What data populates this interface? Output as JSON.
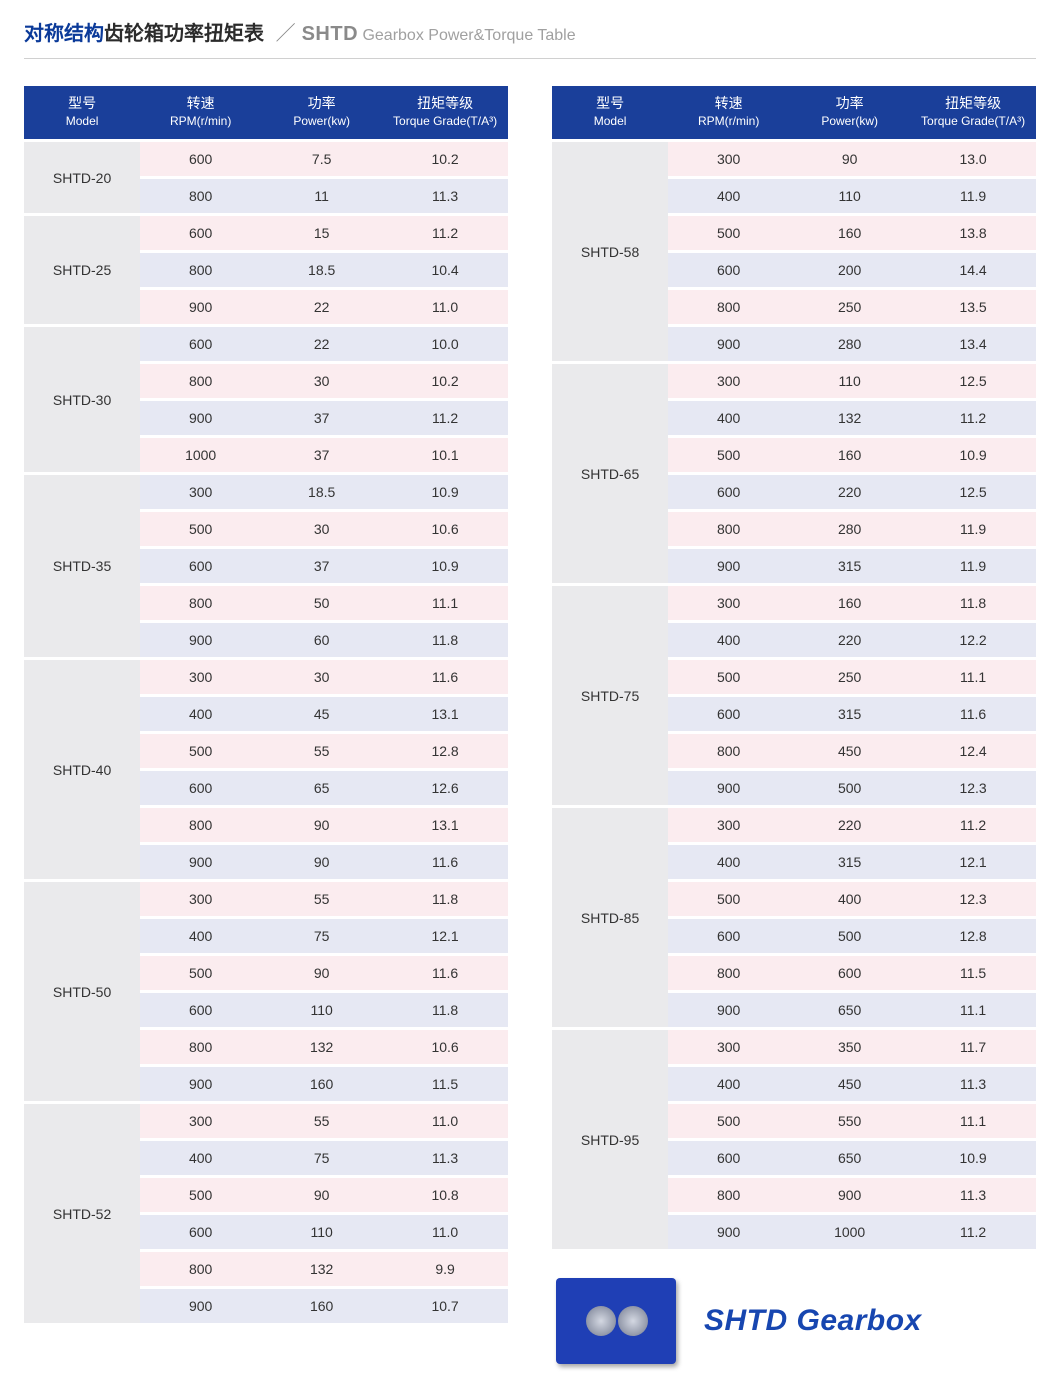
{
  "title": {
    "cn_blue": "对称结构",
    "cn_black": "齿轮箱功率扭矩表",
    "slash": "／",
    "en_main": "SHTD",
    "en_sub": " Gearbox Power&Torque Table"
  },
  "headers": {
    "model": {
      "top": "型号",
      "bot": "Model"
    },
    "rpm": {
      "top": "转速",
      "bot": "RPM(r/min)"
    },
    "power": {
      "top": "功率",
      "bot": "Power(kw)"
    },
    "torque": {
      "top": "扭矩等级",
      "bot": "Torque Grade(T/A³)"
    }
  },
  "colors": {
    "header_bg": "#1a3f9a",
    "header_fg": "#ffffff",
    "model_bg": "#eaeaec",
    "row_pink": "#fbecef",
    "row_blue": "#e6e8f3",
    "title_blue": "#0b3a99"
  },
  "left_groups": [
    {
      "model": "SHTD-20",
      "rows": [
        {
          "rpm": "600",
          "pw": "7.5",
          "tq": "10.2"
        },
        {
          "rpm": "800",
          "pw": "11",
          "tq": "11.3"
        }
      ]
    },
    {
      "model": "SHTD-25",
      "rows": [
        {
          "rpm": "600",
          "pw": "15",
          "tq": "11.2"
        },
        {
          "rpm": "800",
          "pw": "18.5",
          "tq": "10.4"
        },
        {
          "rpm": "900",
          "pw": "22",
          "tq": "11.0"
        }
      ]
    },
    {
      "model": "SHTD-30",
      "rows": [
        {
          "rpm": "600",
          "pw": "22",
          "tq": "10.0"
        },
        {
          "rpm": "800",
          "pw": "30",
          "tq": "10.2"
        },
        {
          "rpm": "900",
          "pw": "37",
          "tq": "11.2"
        },
        {
          "rpm": "1000",
          "pw": "37",
          "tq": "10.1"
        }
      ]
    },
    {
      "model": "SHTD-35",
      "rows": [
        {
          "rpm": "300",
          "pw": "18.5",
          "tq": "10.9"
        },
        {
          "rpm": "500",
          "pw": "30",
          "tq": "10.6"
        },
        {
          "rpm": "600",
          "pw": "37",
          "tq": "10.9"
        },
        {
          "rpm": "800",
          "pw": "50",
          "tq": "11.1"
        },
        {
          "rpm": "900",
          "pw": "60",
          "tq": "11.8"
        }
      ]
    },
    {
      "model": "SHTD-40",
      "rows": [
        {
          "rpm": "300",
          "pw": "30",
          "tq": "11.6"
        },
        {
          "rpm": "400",
          "pw": "45",
          "tq": "13.1"
        },
        {
          "rpm": "500",
          "pw": "55",
          "tq": "12.8"
        },
        {
          "rpm": "600",
          "pw": "65",
          "tq": "12.6"
        },
        {
          "rpm": "800",
          "pw": "90",
          "tq": "13.1"
        },
        {
          "rpm": "900",
          "pw": "90",
          "tq": "11.6"
        }
      ]
    },
    {
      "model": "SHTD-50",
      "rows": [
        {
          "rpm": "300",
          "pw": "55",
          "tq": "11.8"
        },
        {
          "rpm": "400",
          "pw": "75",
          "tq": "12.1"
        },
        {
          "rpm": "500",
          "pw": "90",
          "tq": "11.6"
        },
        {
          "rpm": "600",
          "pw": "110",
          "tq": "11.8"
        },
        {
          "rpm": "800",
          "pw": "132",
          "tq": "10.6"
        },
        {
          "rpm": "900",
          "pw": "160",
          "tq": "11.5"
        }
      ]
    },
    {
      "model": "SHTD-52",
      "rows": [
        {
          "rpm": "300",
          "pw": "55",
          "tq": "11.0"
        },
        {
          "rpm": "400",
          "pw": "75",
          "tq": "11.3"
        },
        {
          "rpm": "500",
          "pw": "90",
          "tq": "10.8"
        },
        {
          "rpm": "600",
          "pw": "110",
          "tq": "11.0"
        },
        {
          "rpm": "800",
          "pw": "132",
          "tq": "9.9"
        },
        {
          "rpm": "900",
          "pw": "160",
          "tq": "10.7"
        }
      ]
    }
  ],
  "right_groups": [
    {
      "model": "SHTD-58",
      "rows": [
        {
          "rpm": "300",
          "pw": "90",
          "tq": "13.0"
        },
        {
          "rpm": "400",
          "pw": "110",
          "tq": "11.9"
        },
        {
          "rpm": "500",
          "pw": "160",
          "tq": "13.8"
        },
        {
          "rpm": "600",
          "pw": "200",
          "tq": "14.4"
        },
        {
          "rpm": "800",
          "pw": "250",
          "tq": "13.5"
        },
        {
          "rpm": "900",
          "pw": "280",
          "tq": "13.4"
        }
      ]
    },
    {
      "model": "SHTD-65",
      "rows": [
        {
          "rpm": "300",
          "pw": "110",
          "tq": "12.5"
        },
        {
          "rpm": "400",
          "pw": "132",
          "tq": "11.2"
        },
        {
          "rpm": "500",
          "pw": "160",
          "tq": "10.9"
        },
        {
          "rpm": "600",
          "pw": "220",
          "tq": "12.5"
        },
        {
          "rpm": "800",
          "pw": "280",
          "tq": "11.9"
        },
        {
          "rpm": "900",
          "pw": "315",
          "tq": "11.9"
        }
      ]
    },
    {
      "model": "SHTD-75",
      "rows": [
        {
          "rpm": "300",
          "pw": "160",
          "tq": "11.8"
        },
        {
          "rpm": "400",
          "pw": "220",
          "tq": "12.2"
        },
        {
          "rpm": "500",
          "pw": "250",
          "tq": "11.1"
        },
        {
          "rpm": "600",
          "pw": "315",
          "tq": "11.6"
        },
        {
          "rpm": "800",
          "pw": "450",
          "tq": "12.4"
        },
        {
          "rpm": "900",
          "pw": "500",
          "tq": "12.3"
        }
      ]
    },
    {
      "model": "SHTD-85",
      "rows": [
        {
          "rpm": "300",
          "pw": "220",
          "tq": "11.2"
        },
        {
          "rpm": "400",
          "pw": "315",
          "tq": "12.1"
        },
        {
          "rpm": "500",
          "pw": "400",
          "tq": "12.3"
        },
        {
          "rpm": "600",
          "pw": "500",
          "tq": "12.8"
        },
        {
          "rpm": "800",
          "pw": "600",
          "tq": "11.5"
        },
        {
          "rpm": "900",
          "pw": "650",
          "tq": "11.1"
        }
      ]
    },
    {
      "model": "SHTD-95",
      "rows": [
        {
          "rpm": "300",
          "pw": "350",
          "tq": "11.7"
        },
        {
          "rpm": "400",
          "pw": "450",
          "tq": "11.3"
        },
        {
          "rpm": "500",
          "pw": "550",
          "tq": "11.1"
        },
        {
          "rpm": "600",
          "pw": "650",
          "tq": "10.9"
        },
        {
          "rpm": "800",
          "pw": "900",
          "tq": "11.3"
        },
        {
          "rpm": "900",
          "pw": "1000",
          "tq": "11.2"
        }
      ]
    }
  ],
  "footer": {
    "label": "SHTD Gearbox"
  }
}
